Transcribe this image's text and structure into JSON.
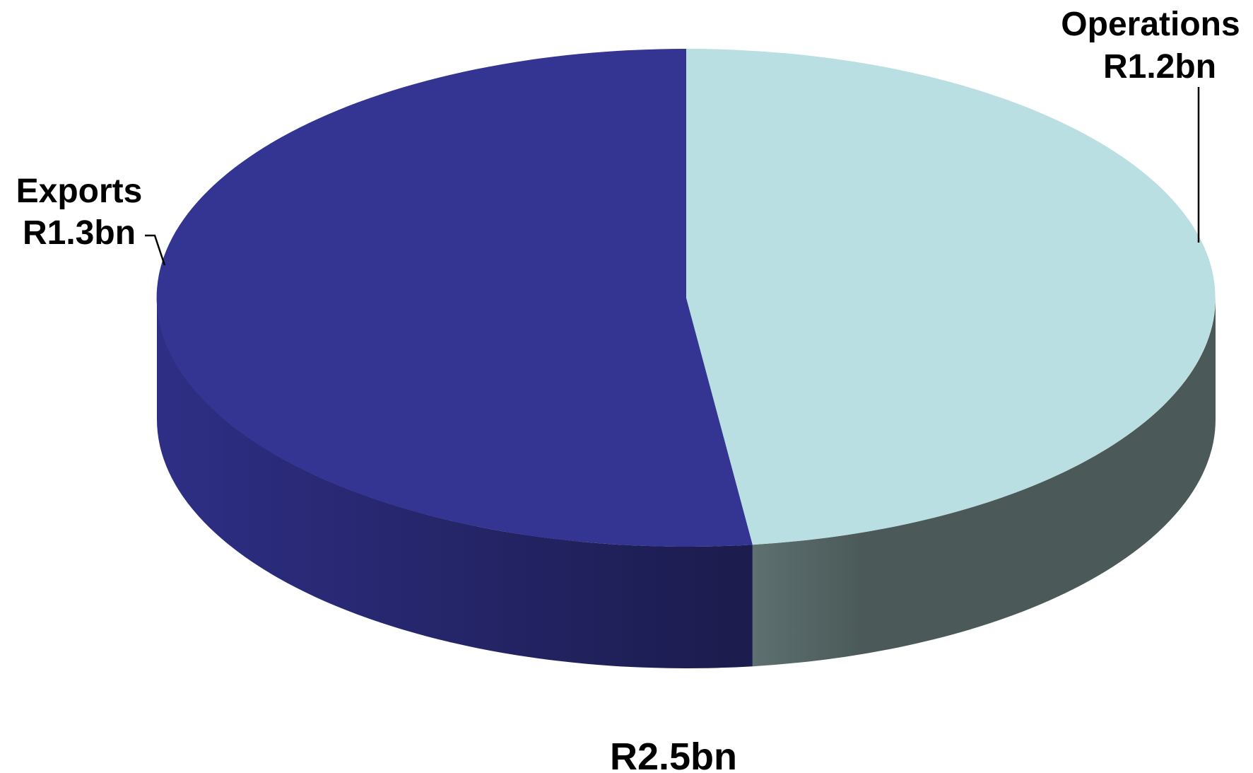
{
  "chart_data": {
    "type": "pie",
    "style": "3d",
    "title": "",
    "total_label": "R2.5bn",
    "slices": [
      {
        "name": "Operations",
        "value_label": "R1.2bn",
        "value": 1.2,
        "color_top": "#b9dfe2",
        "color_side_light": "#607273",
        "color_side_dark": "#4b5a59"
      },
      {
        "name": "Exports",
        "value_label": "R1.3bn",
        "value": 1.3,
        "color_top": "#343493",
        "color_side_light": "#2e2e85",
        "color_side_dark": "#1c1c4e"
      }
    ]
  }
}
